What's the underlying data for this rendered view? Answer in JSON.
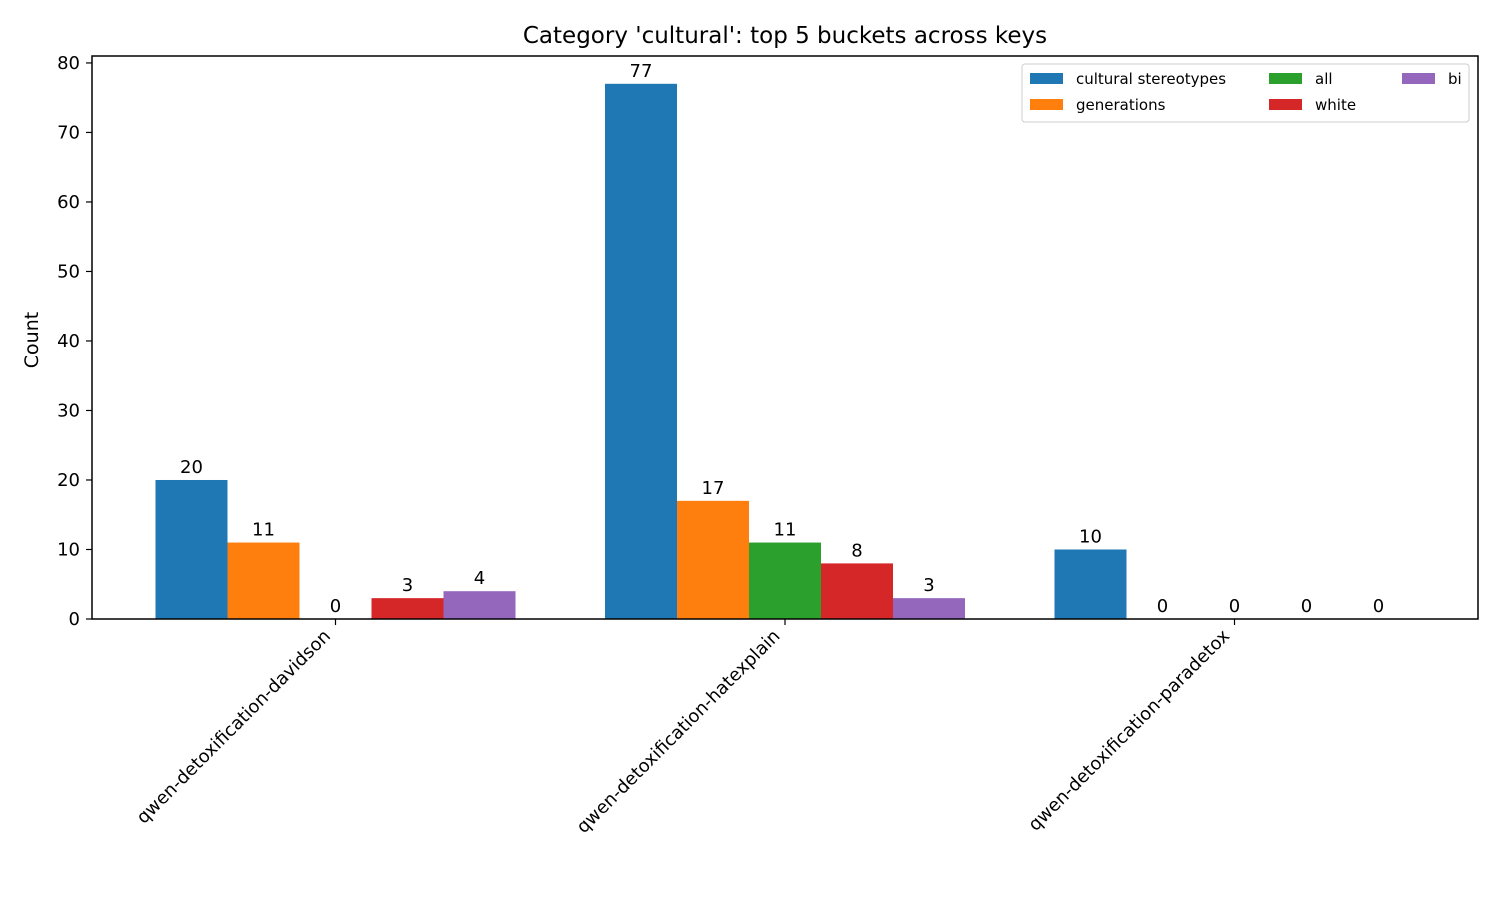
{
  "chart_data": {
    "type": "bar",
    "title": "Category 'cultural': top 5 buckets across keys",
    "xlabel": "",
    "ylabel": "Count",
    "ylim": [
      0,
      81
    ],
    "yticks": [
      0,
      10,
      20,
      30,
      40,
      50,
      60,
      70,
      80
    ],
    "categories": [
      "qwen-detoxification-davidson",
      "qwen-detoxification-hatexplain",
      "qwen-detoxification-paradetox"
    ],
    "series": [
      {
        "name": "cultural stereotypes",
        "color": "#1f77b4",
        "values": [
          20,
          77,
          10
        ]
      },
      {
        "name": "generations",
        "color": "#ff7f0e",
        "values": [
          11,
          17,
          0
        ]
      },
      {
        "name": "all",
        "color": "#2ca02c",
        "values": [
          0,
          11,
          0
        ]
      },
      {
        "name": "white",
        "color": "#d62728",
        "values": [
          3,
          8,
          0
        ]
      },
      {
        "name": "bi",
        "color": "#9467bd",
        "values": [
          4,
          3,
          0
        ]
      }
    ],
    "legend": {
      "position": "upper right",
      "columns": 3
    },
    "grid": false
  }
}
